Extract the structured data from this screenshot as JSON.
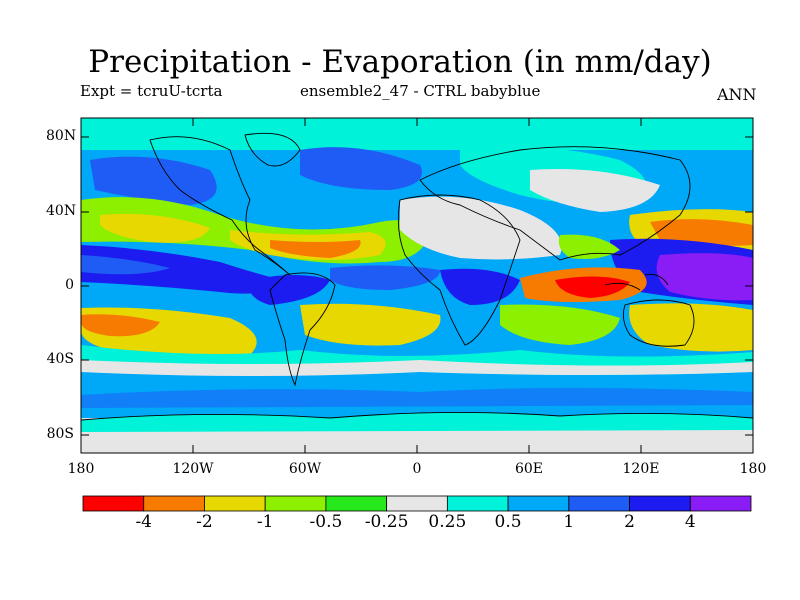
{
  "title": "Precipitation - Evaporation (in mm/day)",
  "expt_label": "Expt = tcruU-tcrta",
  "run_label": "ensemble2_47 - CTRL babyblue",
  "season_label": "ANN",
  "y_ticks": [
    "80N",
    "40N",
    "0",
    "40S",
    "80S"
  ],
  "x_ticks": [
    "180",
    "120W",
    "60W",
    "0",
    "60E",
    "120E",
    "180"
  ],
  "colorbar": {
    "colors": [
      "#ff0000",
      "#f77b00",
      "#e6d800",
      "#8cf000",
      "#27e81a",
      "#e6e6e6",
      "#00f2d8",
      "#00a8f8",
      "#1f5cf5",
      "#1c1cf0",
      "#8a1cf5"
    ],
    "labels": [
      "-4",
      "-2",
      "-1",
      "-0.5",
      "-0.25",
      "0.25",
      "0.5",
      "1",
      "2",
      "4"
    ]
  },
  "map_data": {
    "lon_range": [
      -180,
      180
    ],
    "lat_range": [
      -90,
      90
    ],
    "variable": "Precipitation - Evaporation",
    "units": "mm/day"
  }
}
